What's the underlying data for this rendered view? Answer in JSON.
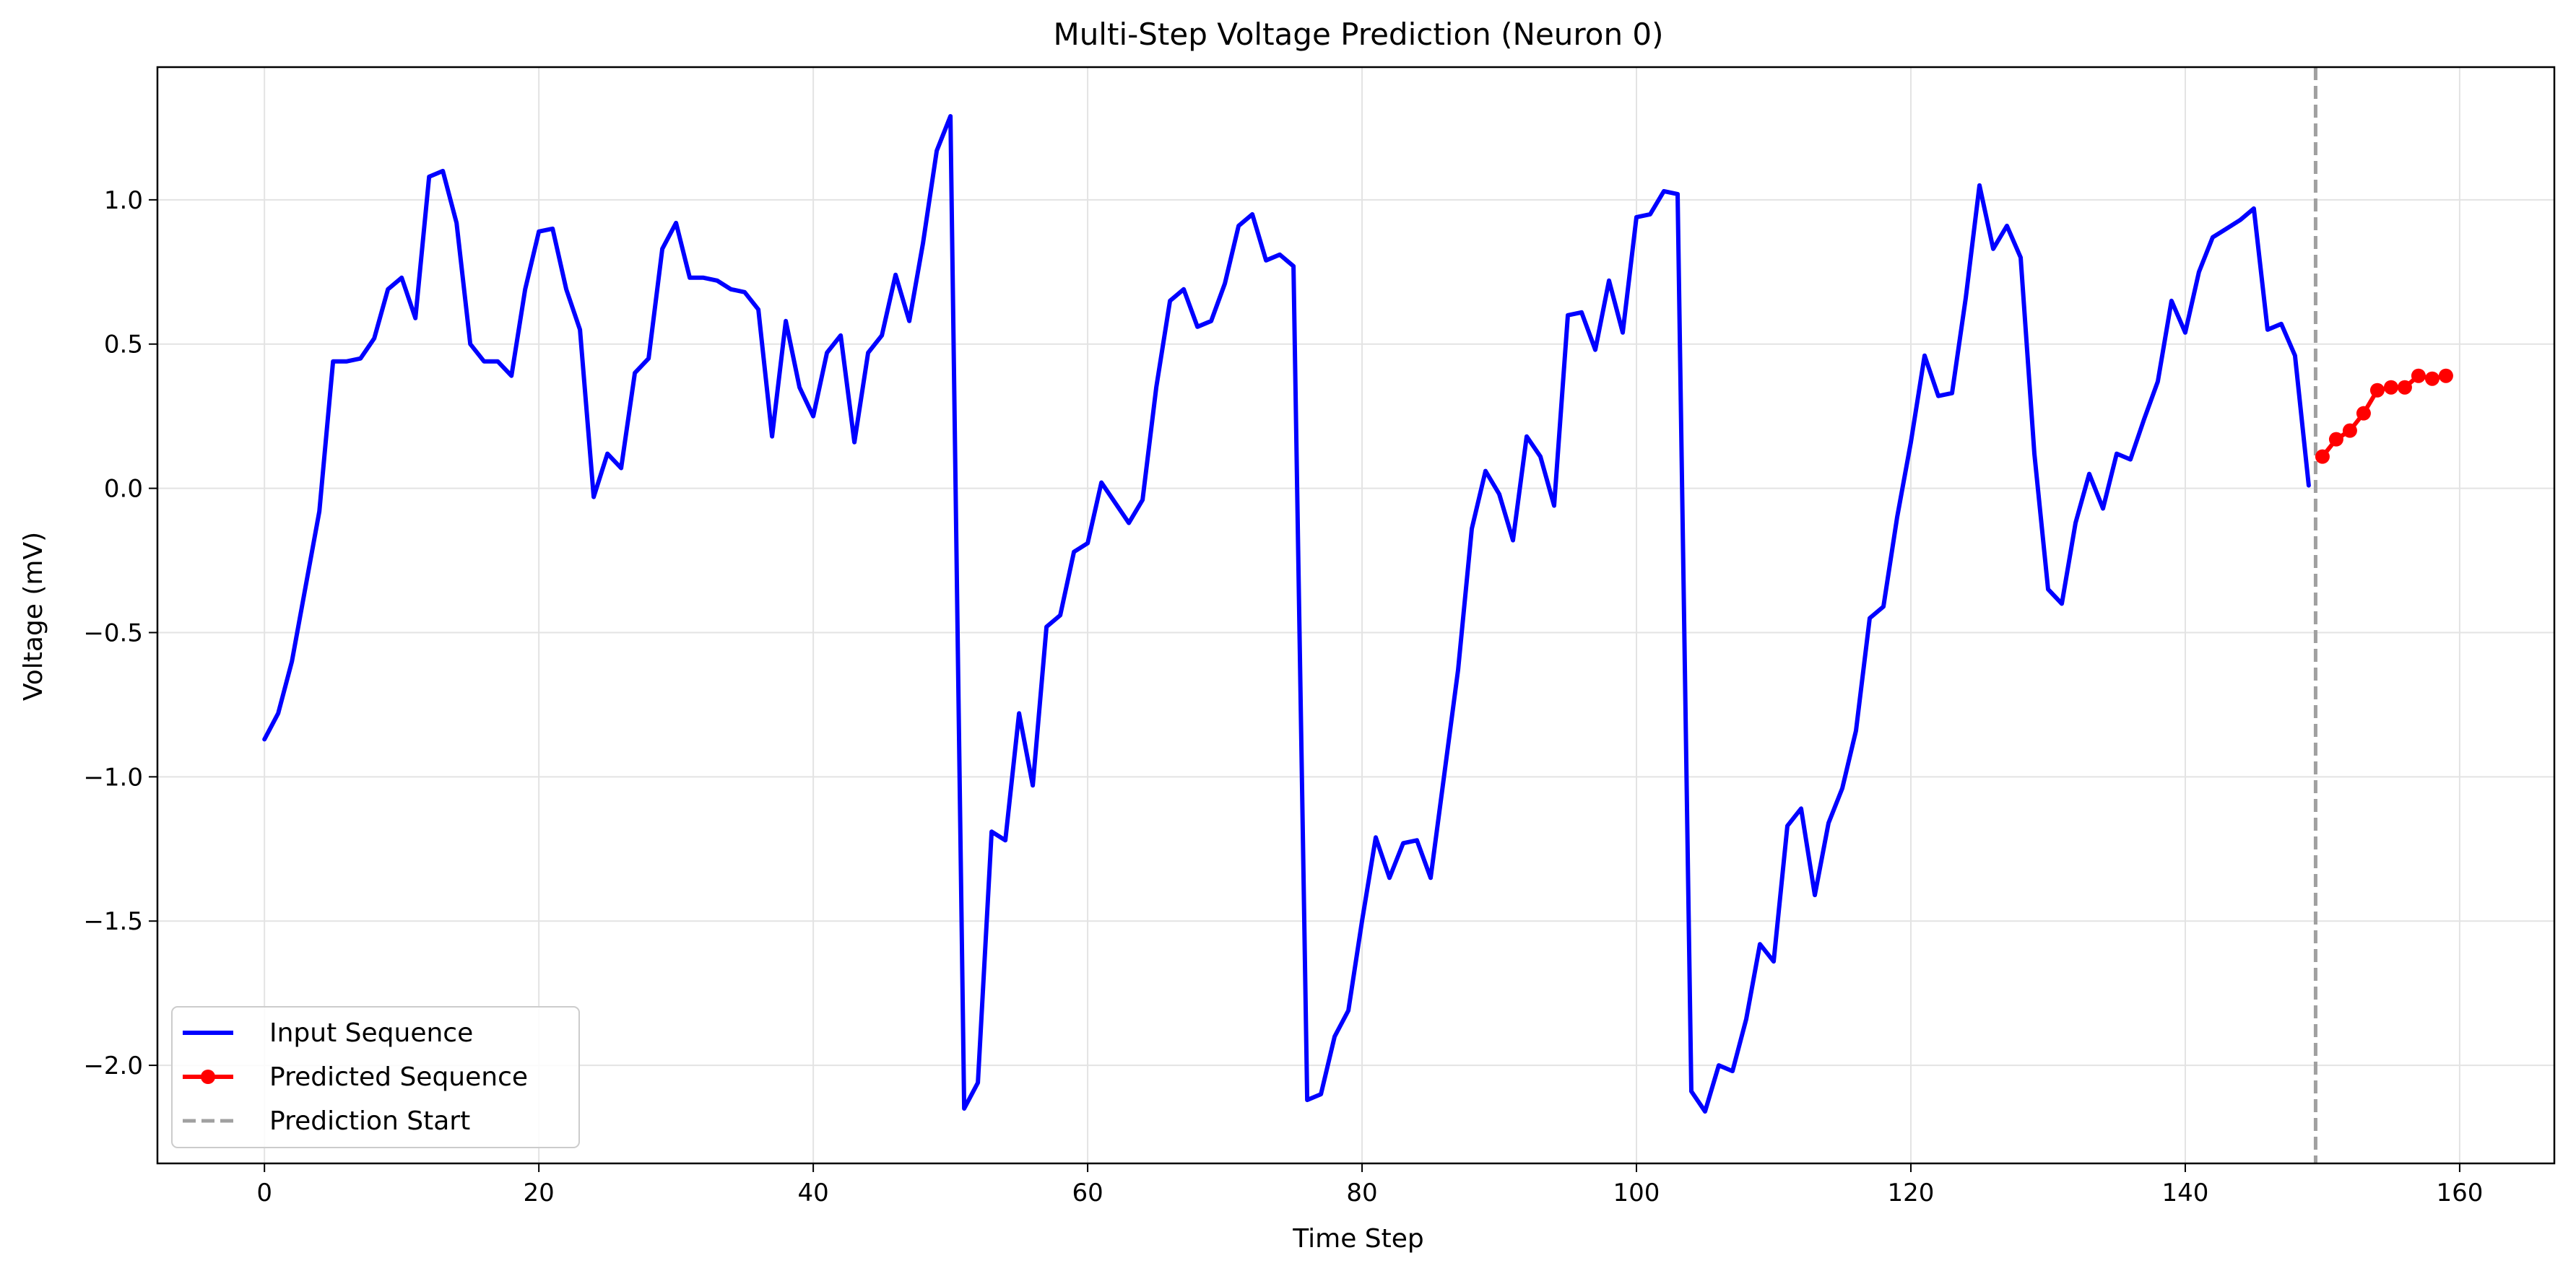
{
  "chart_data": {
    "type": "line",
    "title": "Multi-Step Voltage Prediction (Neuron 0)",
    "xlabel": "Time Step",
    "ylabel": "Voltage (mV)",
    "xlim": [
      -7.8,
      166.9
    ],
    "ylim": [
      -2.34,
      1.46
    ],
    "xticks": [
      0,
      20,
      40,
      60,
      80,
      100,
      120,
      140,
      160
    ],
    "yticks": [
      -2.0,
      -1.5,
      -1.0,
      -0.5,
      0.0,
      0.5,
      1.0
    ],
    "xtick_labels": [
      "0",
      "20",
      "40",
      "60",
      "80",
      "100",
      "120",
      "140",
      "160"
    ],
    "ytick_labels": [
      "−2.0",
      "−1.5",
      "−1.0",
      "−0.5",
      "0.0",
      "0.5",
      "1.0"
    ],
    "grid": true,
    "legend_position": "lower-left",
    "series": [
      {
        "name": "Input Sequence",
        "color": "#0000ff",
        "style": "solid",
        "x_start": 0,
        "values": [
          -0.87,
          -0.78,
          -0.6,
          -0.34,
          -0.08,
          0.44,
          0.44,
          0.45,
          0.52,
          0.69,
          0.73,
          0.59,
          1.08,
          1.1,
          0.92,
          0.5,
          0.44,
          0.44,
          0.39,
          0.69,
          0.89,
          0.9,
          0.69,
          0.55,
          -0.03,
          0.12,
          0.07,
          0.4,
          0.45,
          0.83,
          0.92,
          0.73,
          0.73,
          0.72,
          0.69,
          0.68,
          0.62,
          0.18,
          0.58,
          0.35,
          0.25,
          0.47,
          0.53,
          0.16,
          0.47,
          0.53,
          0.74,
          0.58,
          0.85,
          1.17,
          1.29,
          -2.15,
          -2.06,
          -1.19,
          -1.22,
          -0.78,
          -1.03,
          -0.48,
          -0.44,
          -0.22,
          -0.19,
          0.02,
          -0.05,
          -0.12,
          -0.04,
          0.35,
          0.65,
          0.69,
          0.56,
          0.58,
          0.71,
          0.91,
          0.95,
          0.79,
          0.81,
          0.77,
          -2.12,
          -2.1,
          -1.9,
          -1.81,
          -1.5,
          -1.21,
          -1.35,
          -1.23,
          -1.22,
          -1.35,
          -0.99,
          -0.63,
          -0.14,
          0.06,
          -0.02,
          -0.18,
          0.18,
          0.11,
          -0.06,
          0.6,
          0.61,
          0.48,
          0.72,
          0.54,
          0.94,
          0.95,
          1.03,
          1.02,
          -2.09,
          -2.16,
          -2.0,
          -2.02,
          -1.84,
          -1.58,
          -1.64,
          -1.17,
          -1.11,
          -1.41,
          -1.16,
          -1.04,
          -0.84,
          -0.45,
          -0.41,
          -0.1,
          0.16,
          0.46,
          0.32,
          0.33,
          0.66,
          1.05,
          0.83,
          0.91,
          0.8,
          0.12,
          -0.35,
          -0.4,
          -0.12,
          0.05,
          -0.07,
          0.12,
          0.1,
          0.24,
          0.37,
          0.65,
          0.54,
          0.75,
          0.87,
          0.9,
          0.93,
          0.97,
          0.55,
          0.57,
          0.46,
          0.01
        ]
      },
      {
        "name": "Predicted Sequence",
        "color": "#ff0000",
        "style": "solid-with-markers",
        "x_start": 150,
        "values": [
          0.11,
          0.17,
          0.2,
          0.26,
          0.34,
          0.35,
          0.35,
          0.39,
          0.38,
          0.39
        ]
      }
    ],
    "reference_lines": [
      {
        "name": "Prediction Start",
        "orientation": "vertical",
        "x": 149.5,
        "color": "#a0a0a0",
        "style": "dashed"
      }
    ]
  }
}
